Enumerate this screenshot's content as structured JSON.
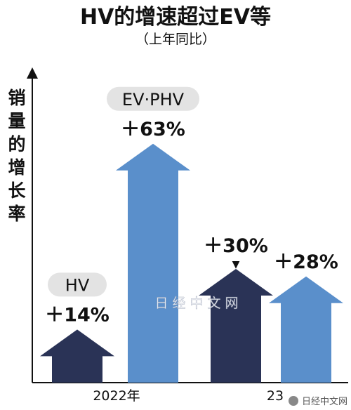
{
  "title": "HV的增速超过EV等",
  "subtitle": "（上年同比）",
  "watermark": "日经中文网",
  "source_tag": "日经中文网",
  "chart_data": {
    "type": "bar",
    "title": "HV的增速超过EV等",
    "subtitle": "（上年同比）",
    "ylabel": "销量的增长率",
    "xlabel": "",
    "categories": [
      "2022年",
      "23"
    ],
    "series": [
      {
        "name": "HV",
        "values": [
          14,
          30
        ],
        "labels": [
          "＋14%",
          "＋30%"
        ],
        "color": "#2a3356"
      },
      {
        "name": "EV·PHV",
        "values": [
          63,
          28
        ],
        "labels": [
          "＋63%",
          "＋28%"
        ],
        "color": "#5a8fcb"
      }
    ],
    "ylim": [
      0,
      80
    ],
    "grid": false,
    "legend": "labels-on-bars",
    "annotation_marker": "▼"
  }
}
